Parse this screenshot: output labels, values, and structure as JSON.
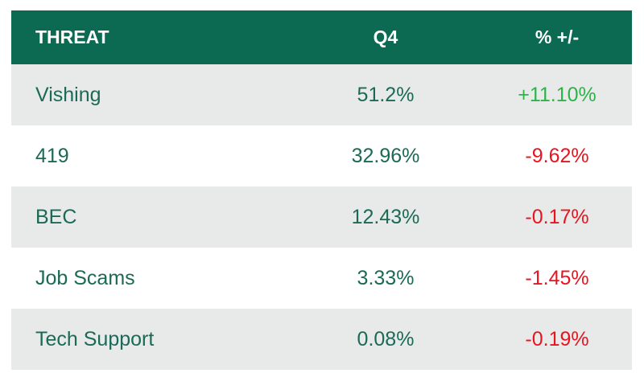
{
  "colors": {
    "header_bg": "#0c6952",
    "text_green": "#1b6a56",
    "positive": "#2db34a",
    "negative": "#e8141f",
    "row_shade": "#e8eae9"
  },
  "chart_data": {
    "type": "table",
    "columns": [
      "THREAT",
      "Q4",
      "% +/-"
    ],
    "rows": [
      {
        "threat": "Vishing",
        "q4": "51.2%",
        "change": "+11.10%",
        "direction": "up"
      },
      {
        "threat": "419",
        "q4": "32.96%",
        "change": "-9.62%",
        "direction": "down"
      },
      {
        "threat": "BEC",
        "q4": "12.43%",
        "change": "-0.17%",
        "direction": "down"
      },
      {
        "threat": "Job Scams",
        "q4": "3.33%",
        "change": "-1.45%",
        "direction": "down"
      },
      {
        "threat": "Tech Support",
        "q4": "0.08%",
        "change": "-0.19%",
        "direction": "down"
      }
    ]
  }
}
